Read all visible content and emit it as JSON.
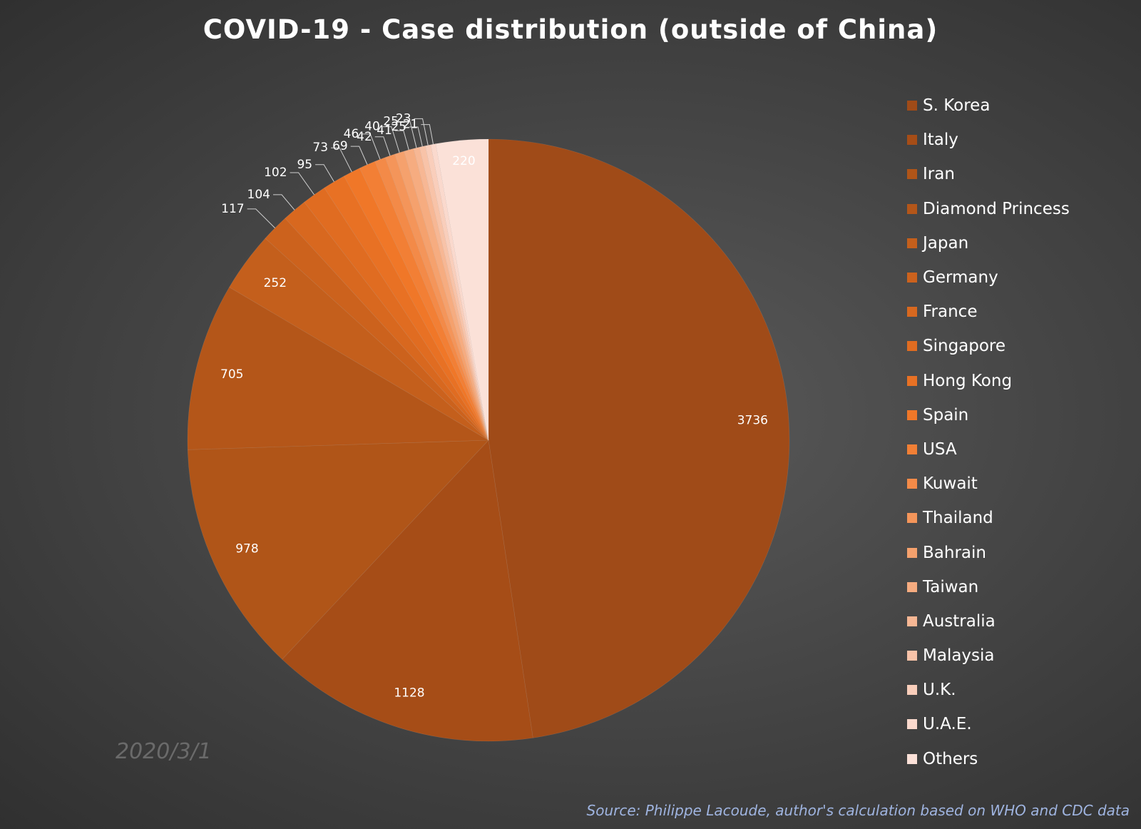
{
  "chart_data": {
    "type": "pie",
    "title": "COVID-19 - Case distribution (outside of China)",
    "date_note": "2020/3/1",
    "source": "Source: Philippe Lacoude, author's calculation based on WHO and CDC data",
    "legend_position": "right",
    "start_angle": "12 o'clock",
    "direction": "clockwise",
    "slices": [
      {
        "label": "S. Korea",
        "value": 3736,
        "color": "#a04b18"
      },
      {
        "label": "Italy",
        "value": 1128,
        "color": "#a64d17"
      },
      {
        "label": "Iran",
        "value": 978,
        "color": "#b05518"
      },
      {
        "label": "Diamond Princess",
        "value": 705,
        "color": "#b45619"
      },
      {
        "label": "Japan",
        "value": 252,
        "color": "#c45f1c"
      },
      {
        "label": "Germany",
        "value": 117,
        "color": "#cc621d"
      },
      {
        "label": "France",
        "value": 104,
        "color": "#d8681f"
      },
      {
        "label": "Singapore",
        "value": 102,
        "color": "#e06c21"
      },
      {
        "label": "Hong Kong",
        "value": 95,
        "color": "#e87124"
      },
      {
        "label": "Spain",
        "value": 73,
        "color": "#f07728"
      },
      {
        "label": "USA",
        "value": 69,
        "color": "#f27f35"
      },
      {
        "label": "Kuwait",
        "value": 46,
        "color": "#f38a48"
      },
      {
        "label": "Thailand",
        "value": 42,
        "color": "#f4955a"
      },
      {
        "label": "Bahrain",
        "value": 40,
        "color": "#f5a16d"
      },
      {
        "label": "Taiwan",
        "value": 41,
        "color": "#f6ac80"
      },
      {
        "label": "Australia",
        "value": 25,
        "color": "#f7b794"
      },
      {
        "label": "Malaysia",
        "value": 25,
        "color": "#f8c3a8"
      },
      {
        "label": "U.K.",
        "value": 23,
        "color": "#f9cebb"
      },
      {
        "label": "U.A.E.",
        "value": 21,
        "color": "#fad9cd"
      },
      {
        "label": "Others",
        "value": 220,
        "color": "#fbe1d8"
      }
    ]
  }
}
